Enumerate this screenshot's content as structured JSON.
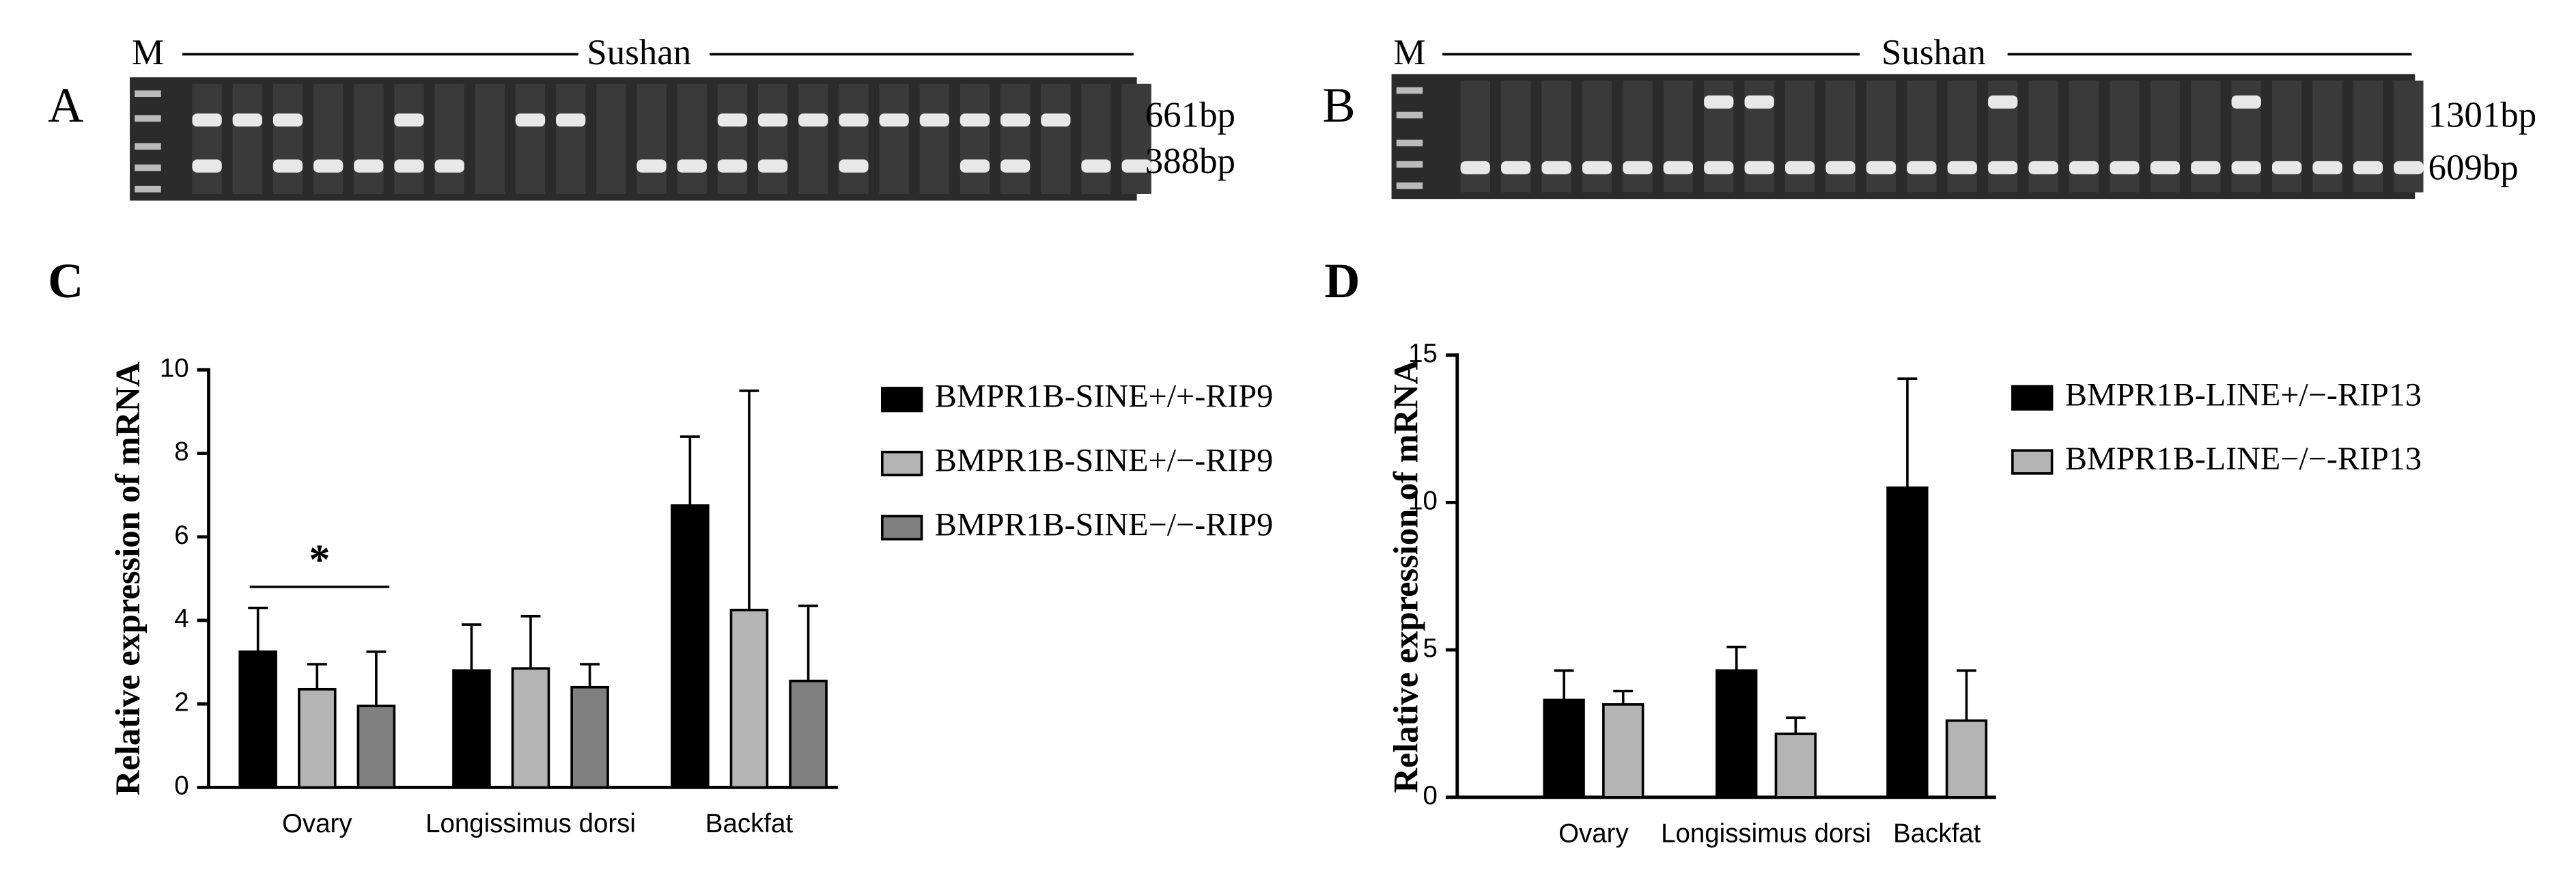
{
  "panels": [
    {
      "label": "A",
      "marker": "M",
      "population": "Sushan",
      "bands": [
        "661bp",
        "388bp"
      ]
    },
    {
      "label": "B",
      "marker": "M",
      "population": "Sushan",
      "bands": [
        "1301bp",
        "609bp"
      ]
    }
  ],
  "chart_data": [
    {
      "type": "bar",
      "panel_label": "C",
      "y_label": "Relative expression of mRNA",
      "categories": [
        "Ovary",
        "Longissimus dorsi",
        "Backfat"
      ],
      "series": [
        {
          "name": "BMPR1B-SINE+/+-RIP9",
          "color": "#000000",
          "values": [
            3.25,
            2.8,
            6.75
          ],
          "errors": [
            1.05,
            1.1,
            1.65
          ]
        },
        {
          "name": "BMPR1B-SINE+/−-RIP9",
          "color": "#b4b4b4",
          "values": [
            2.35,
            2.85,
            4.25
          ],
          "errors": [
            0.6,
            1.25,
            5.25
          ]
        },
        {
          "name": "BMPR1B-SINE−/−-RIP9",
          "color": "#808080",
          "values": [
            1.95,
            2.4,
            2.55
          ],
          "errors": [
            1.3,
            0.55,
            1.8
          ]
        }
      ],
      "annotation": "*",
      "ylim": [
        0,
        10
      ],
      "yticks": [
        0,
        2,
        4,
        6,
        8,
        10
      ]
    },
    {
      "type": "bar",
      "panel_label": "D",
      "y_label": "Relative expression of mRNA",
      "categories": [
        "Ovary",
        "Longissimus dorsi",
        "Backfat"
      ],
      "series": [
        {
          "name": "BMPR1B-LINE+/−-RIP13",
          "color": "#000000",
          "values": [
            3.3,
            4.3,
            10.5
          ],
          "errors": [
            1.0,
            0.8,
            3.7
          ]
        },
        {
          "name": "BMPR1B-LINE−/−-RIP13",
          "color": "#b4b4b4",
          "values": [
            3.15,
            2.15,
            2.6
          ],
          "errors": [
            0.45,
            0.55,
            1.7
          ]
        }
      ],
      "ylim": [
        0,
        15
      ],
      "yticks": [
        0,
        5,
        10,
        15
      ]
    }
  ]
}
